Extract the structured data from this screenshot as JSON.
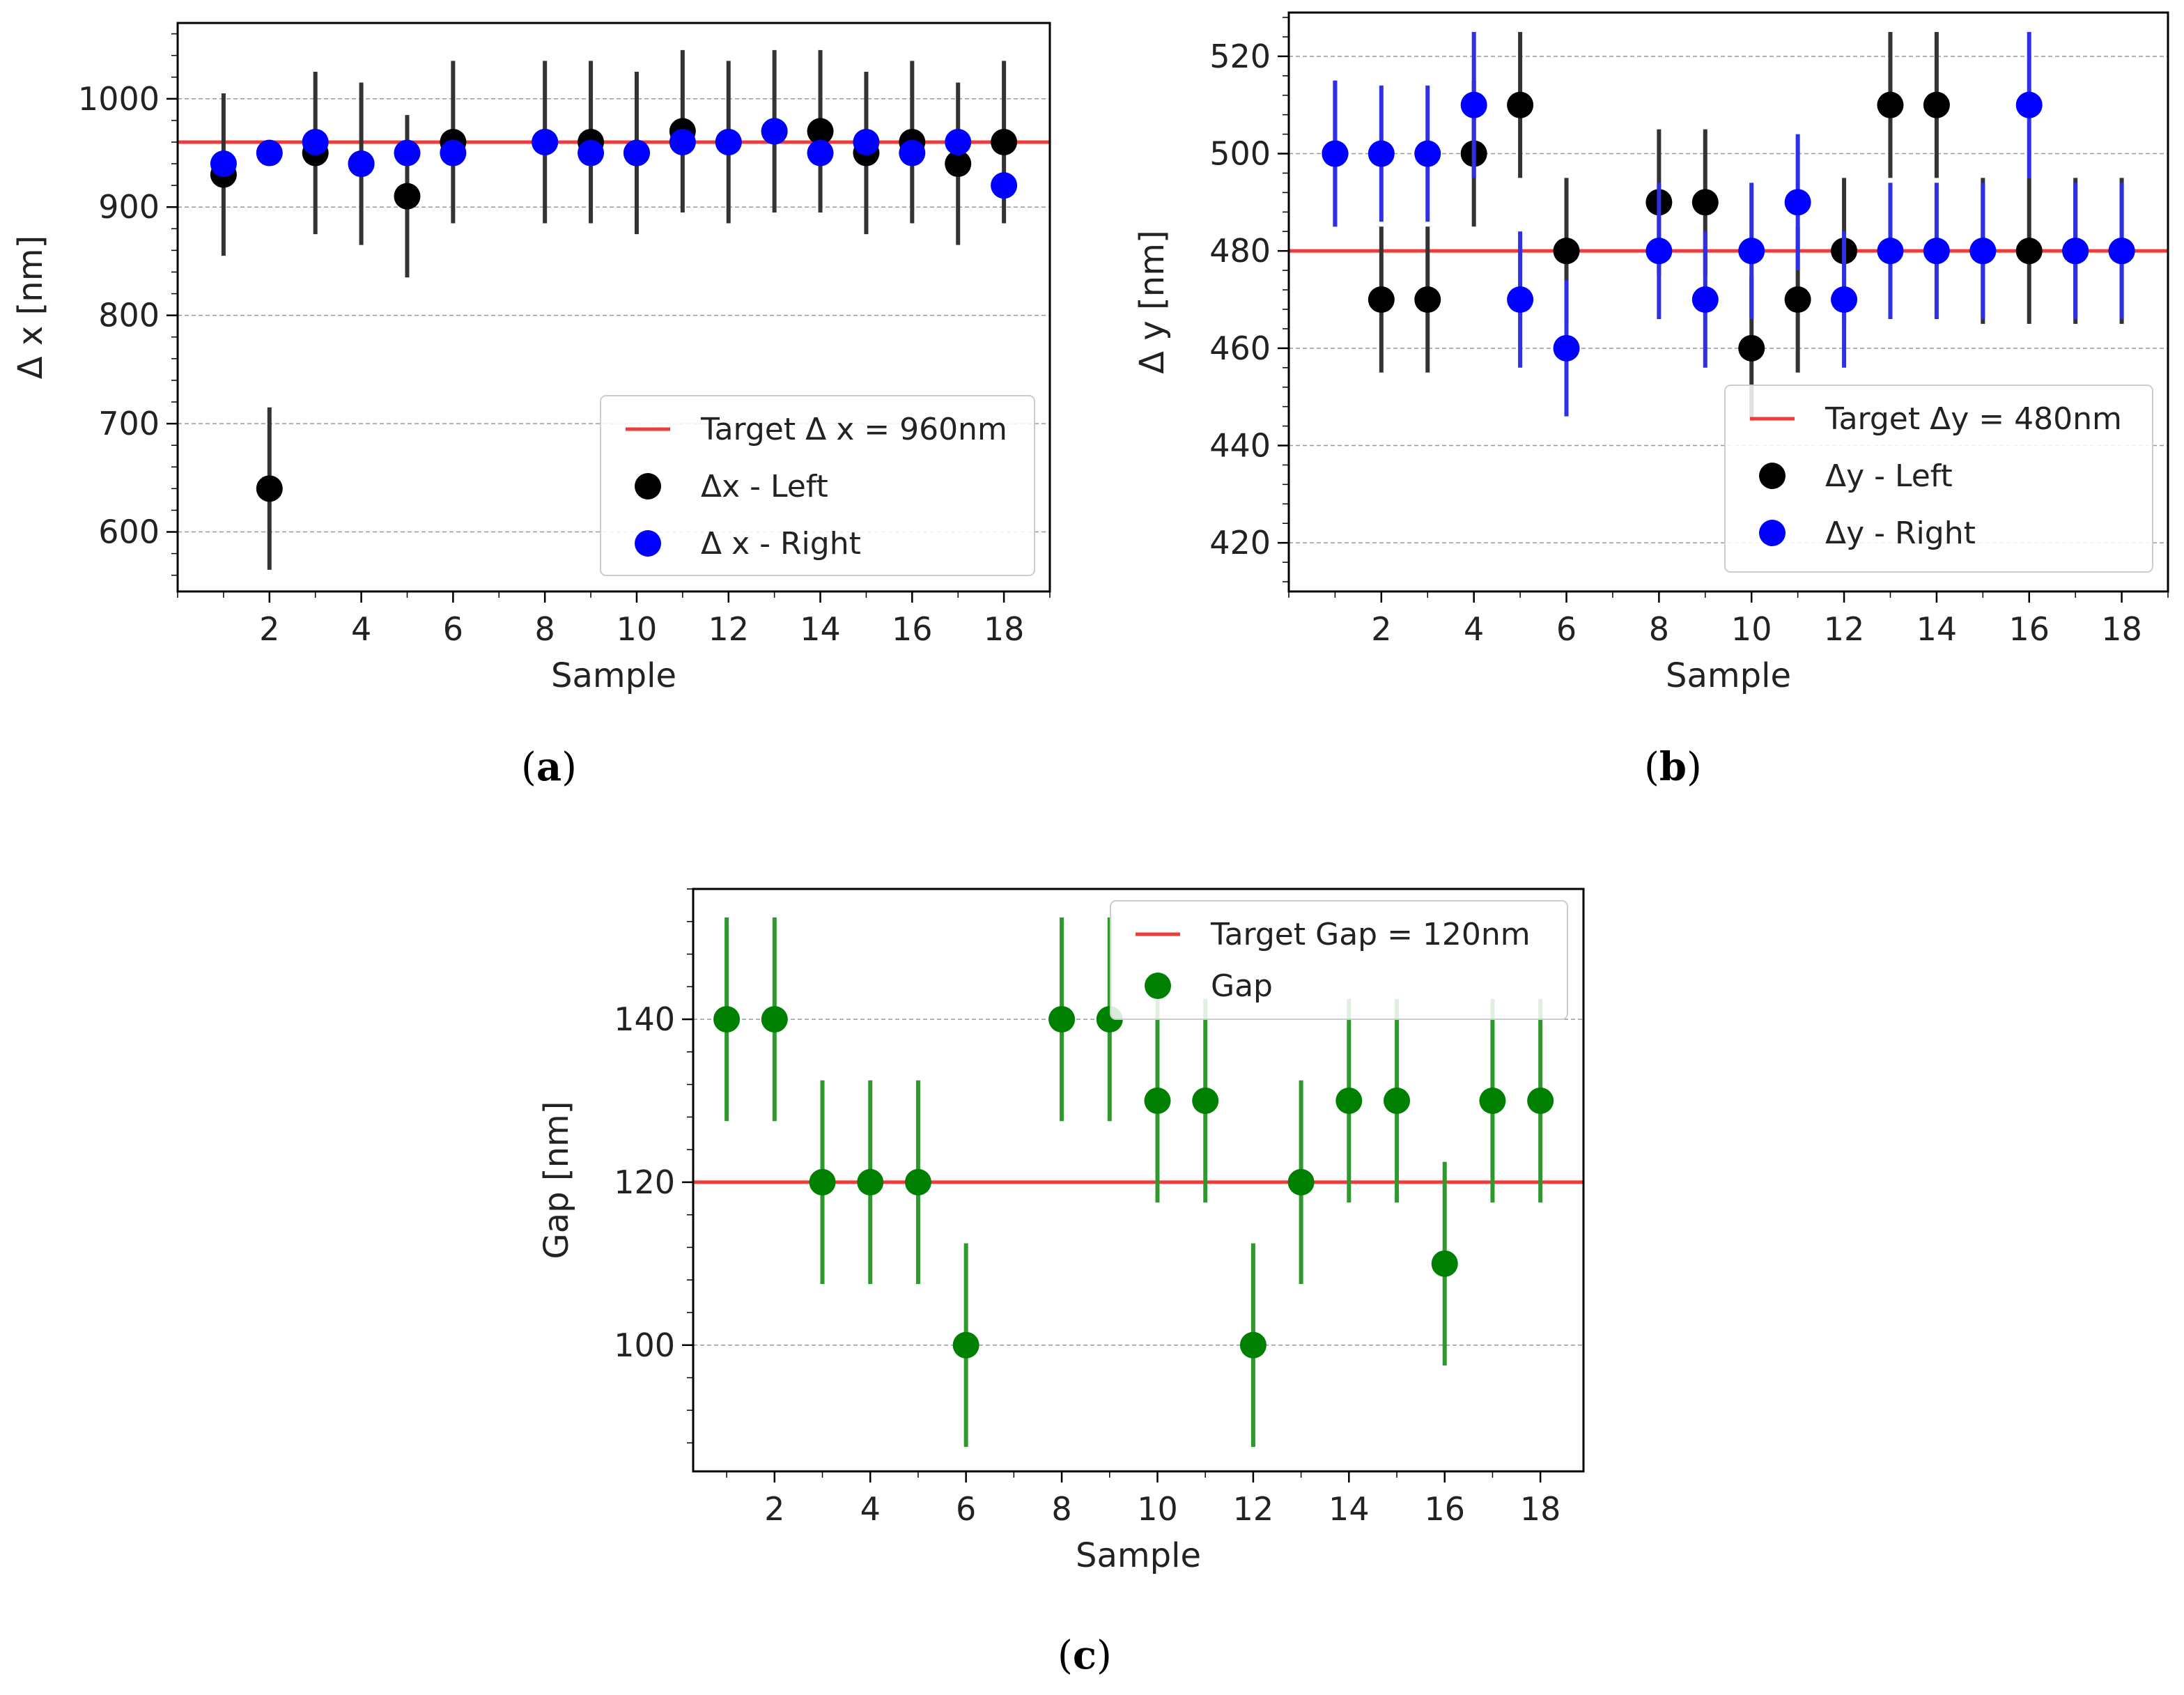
{
  "chart_data": [
    {
      "type": "scatter",
      "id": "a",
      "caption_letter": "a",
      "caption_open": "(",
      "caption_close": ")",
      "xlabel": "Sample",
      "ylabel": "Δ x [nm]",
      "xlim": [
        0.0,
        19.0
      ],
      "ylim": [
        545,
        1070
      ],
      "xticks": [
        2,
        4,
        6,
        8,
        10,
        12,
        14,
        16,
        18
      ],
      "xtick_labels": [
        "2",
        "4",
        "6",
        "8",
        "10",
        "12",
        "14",
        "16",
        "18"
      ],
      "yticks": [
        600,
        700,
        800,
        900,
        1000
      ],
      "ytick_labels": [
        "600",
        "700",
        "800",
        "900",
        "1000"
      ],
      "grid": true,
      "target": {
        "value": 960,
        "color": "#ef3b3b",
        "label": "Target Δ x = 960nm"
      },
      "legend_position": "lower-right",
      "series": [
        {
          "name": "Δx - Left",
          "color": "#000000",
          "errcolor": "#333333",
          "x": [
            1,
            2,
            3,
            4,
            5,
            6,
            8,
            9,
            10,
            11,
            12,
            13,
            14,
            15,
            16,
            17,
            18
          ],
          "y": [
            930,
            640,
            950,
            940,
            910,
            960,
            960,
            960,
            950,
            970,
            960,
            970,
            970,
            950,
            960,
            940,
            960
          ],
          "err": [
            75,
            75,
            75,
            75,
            75,
            75,
            75,
            75,
            75,
            75,
            75,
            75,
            75,
            75,
            75,
            75,
            75
          ]
        },
        {
          "name": "Δ x - Right",
          "color": "#0000ff",
          "errcolor": "#3a3aee",
          "x": [
            1,
            2,
            3,
            4,
            5,
            6,
            8,
            9,
            10,
            11,
            12,
            13,
            14,
            15,
            16,
            17,
            18
          ],
          "y": [
            940,
            950,
            960,
            940,
            950,
            950,
            960,
            950,
            950,
            960,
            960,
            970,
            950,
            960,
            950,
            960,
            920
          ],
          "err": [
            0,
            0,
            0,
            0,
            0,
            0,
            0,
            0,
            0,
            0,
            0,
            0,
            0,
            0,
            0,
            0,
            0
          ]
        }
      ]
    },
    {
      "type": "scatter",
      "id": "b",
      "caption_letter": "b",
      "caption_open": "(",
      "caption_close": ")",
      "xlabel": "Sample",
      "ylabel": "Δ y [nm]",
      "xlim": [
        0.0,
        19.0
      ],
      "ylim": [
        410,
        529
      ],
      "xticks": [
        2,
        4,
        6,
        8,
        10,
        12,
        14,
        16,
        18
      ],
      "xtick_labels": [
        "2",
        "4",
        "6",
        "8",
        "10",
        "12",
        "14",
        "16",
        "18"
      ],
      "yticks": [
        420,
        440,
        460,
        480,
        500,
        520
      ],
      "ytick_labels": [
        "420",
        "440",
        "460",
        "480",
        "500",
        "520"
      ],
      "grid": true,
      "target": {
        "value": 480,
        "color": "#ef3b3b",
        "label": "Target Δy = 480nm"
      },
      "legend_position": "lower-right",
      "series": [
        {
          "name": "Δy - Left",
          "color": "#000000",
          "errcolor": "#333333",
          "x": [
            1,
            2,
            3,
            4,
            5,
            6,
            8,
            9,
            10,
            11,
            12,
            13,
            14,
            15,
            16,
            17,
            18
          ],
          "y": [
            500,
            470,
            470,
            500,
            510,
            480,
            490,
            490,
            460,
            470,
            480,
            510,
            510,
            480,
            480,
            480,
            480
          ],
          "err": [
            15,
            15,
            15,
            15,
            15,
            15,
            15,
            15,
            15,
            15,
            15,
            15,
            15,
            15,
            15,
            15,
            15
          ]
        },
        {
          "name": "Δy - Right",
          "color": "#0000ff",
          "errcolor": "#2f2fe6",
          "x": [
            1,
            2,
            3,
            4,
            5,
            6,
            8,
            9,
            10,
            11,
            12,
            13,
            14,
            15,
            16,
            17,
            18
          ],
          "y": [
            500,
            500,
            500,
            510,
            470,
            460,
            480,
            470,
            480,
            490,
            470,
            480,
            480,
            480,
            510,
            480,
            480
          ],
          "err": [
            15,
            14,
            14,
            15,
            14,
            14,
            14,
            14,
            14,
            14,
            14,
            14,
            14,
            14,
            15,
            14,
            14
          ]
        }
      ]
    },
    {
      "type": "scatter",
      "id": "c",
      "caption_letter": "c",
      "caption_open": "(",
      "caption_close": ")",
      "xlabel": "Sample",
      "ylabel": "Gap [nm]",
      "xlim": [
        0.3,
        18.9
      ],
      "ylim": [
        84.5,
        156
      ],
      "xticks": [
        2,
        4,
        6,
        8,
        10,
        12,
        14,
        16,
        18
      ],
      "xtick_labels": [
        "2",
        "4",
        "6",
        "8",
        "10",
        "12",
        "14",
        "16",
        "18"
      ],
      "yticks": [
        100,
        120,
        140
      ],
      "ytick_labels": [
        "100",
        "120",
        "140"
      ],
      "grid": true,
      "target": {
        "value": 120,
        "color": "#ef3b3b",
        "label": "Target Gap = 120nm"
      },
      "legend_position": "top-right",
      "series": [
        {
          "name": "Gap",
          "color": "#008000",
          "errcolor": "#2e9a2e",
          "x": [
            1,
            2,
            3,
            4,
            5,
            6,
            8,
            9,
            10,
            11,
            12,
            13,
            14,
            15,
            16,
            17,
            18
          ],
          "y": [
            140,
            140,
            120,
            120,
            120,
            100,
            140,
            140,
            130,
            130,
            100,
            120,
            130,
            130,
            110,
            130,
            130
          ],
          "err": [
            12.5,
            12.5,
            12.5,
            12.5,
            12.5,
            12.5,
            12.5,
            12.5,
            12.5,
            12.5,
            12.5,
            12.5,
            12.5,
            12.5,
            12.5,
            12.5,
            12.5
          ]
        }
      ]
    }
  ]
}
